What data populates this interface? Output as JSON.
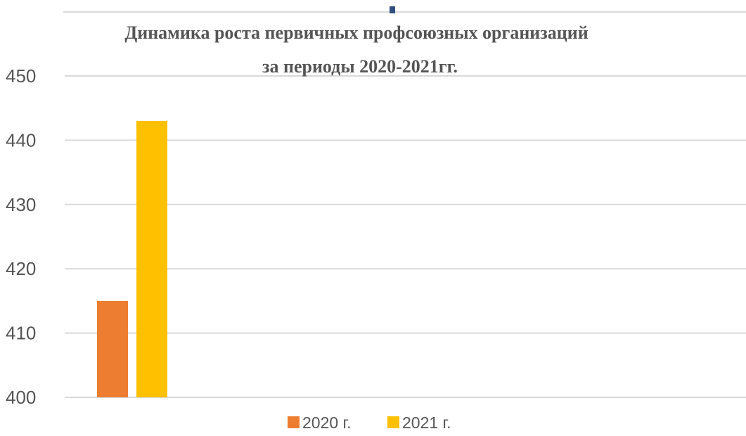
{
  "chart_data": {
    "type": "bar",
    "title_line1": "Динамика роста первичных профсоюзных организаций",
    "title_line2": "за периоды 2020-2021гг.",
    "xlabel": "",
    "ylabel": "",
    "categories": [
      ""
    ],
    "series": [
      {
        "name": "2020 г.",
        "values": [
          415
        ],
        "color": "#ED7D31"
      },
      {
        "name": "2021 г.",
        "values": [
          443
        ],
        "color": "#FFC000"
      }
    ],
    "ylim": [
      400,
      450
    ],
    "yticks": [
      "400",
      "410",
      "420",
      "430",
      "440",
      "450"
    ],
    "grid": true,
    "gridline_color": "#d9d9d9",
    "legend_position": "bottom",
    "text_color": "#555555"
  }
}
